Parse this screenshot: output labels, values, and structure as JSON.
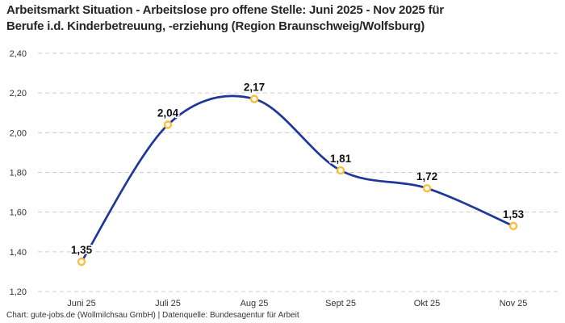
{
  "chart": {
    "title": "Arbeitsmarkt Situation - Arbeitslose pro offene Stelle: Juni 2025 - Nov 2025 für\nBerufe i.d. Kinderbetreuung, -erziehung (Region Braunschweig/Wolfsburg)",
    "footer": "Chart: gute-jobs.de (Wollmilchsau GmbH) | Datenquelle: Bundesagentur für Arbeit"
  },
  "chart_data": {
    "type": "line",
    "title": "Arbeitsmarkt Situation - Arbeitslose pro offene Stelle: Juni 2025 - Nov 2025 für Berufe i.d. Kinderbetreuung, -erziehung (Region Braunschweig/Wolfsburg)",
    "categories": [
      "Juni 25",
      "Juli 25",
      "Aug 25",
      "Sept 25",
      "Okt 25",
      "Nov 25"
    ],
    "values": [
      1.35,
      2.04,
      2.17,
      1.81,
      1.72,
      1.53
    ],
    "value_labels": [
      "1,35",
      "2,04",
      "2,17",
      "1,81",
      "1,72",
      "1,53"
    ],
    "y_ticks": [
      1.2,
      1.4,
      1.6,
      1.8,
      2.0,
      2.2,
      2.4
    ],
    "y_tick_labels": [
      "1,20",
      "1,40",
      "1,60",
      "1,80",
      "2,00",
      "2,20",
      "2,40"
    ],
    "ylim": [
      1.2,
      2.4
    ],
    "xlabel": "",
    "ylabel": "",
    "grid": "horizontal-dashed",
    "legend": "none",
    "line_color": "#1e3799",
    "marker_stroke_color": "#fbbd3c",
    "marker_fill_color": "#ffffff",
    "grid_color": "#cccccc",
    "label_color": "#111111",
    "tick_color": "#333333"
  }
}
